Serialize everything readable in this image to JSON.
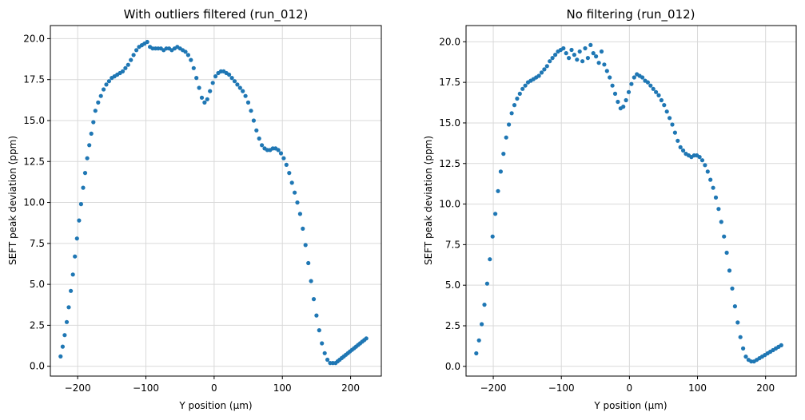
{
  "colors": {
    "marker": "#1f77b4",
    "grid": "#d9d9d9",
    "axes": "#000000",
    "background": "#ffffff"
  },
  "chart_data": [
    {
      "type": "scatter",
      "title": "With outliers filtered (run_012)",
      "xlabel": "Y position (µm)",
      "ylabel": "SEFT peak deviation (ppm)",
      "xlim": [
        -240,
        245
      ],
      "ylim": [
        -0.6,
        20.8
      ],
      "xticks": [
        -200,
        -100,
        0,
        100,
        200
      ],
      "xtick_labels": [
        "−200",
        "−100",
        "0",
        "100",
        "200"
      ],
      "yticks": [
        0.0,
        2.5,
        5.0,
        7.5,
        10.0,
        12.5,
        15.0,
        17.5,
        20.0
      ],
      "ytick_labels": [
        "0.0",
        "2.5",
        "5.0",
        "7.5",
        "10.0",
        "12.5",
        "15.0",
        "17.5",
        "20.0"
      ],
      "grid": true,
      "series": [
        {
          "x": [
            -225,
            -222,
            -219,
            -216,
            -213,
            -210,
            -207,
            -204,
            -201,
            -198,
            -195,
            -192,
            -189,
            -186,
            -183,
            -180,
            -177,
            -174,
            -170,
            -166,
            -162,
            -158,
            -154,
            -150,
            -146,
            -142,
            -138,
            -134,
            -130,
            -126,
            -122,
            -118,
            -114,
            -110,
            -106,
            -102,
            -98,
            -94,
            -90,
            -86,
            -82,
            -78,
            -74,
            -70,
            -66,
            -62,
            -58,
            -54,
            -50,
            -46,
            -42,
            -38,
            -34,
            -30,
            -26,
            -22,
            -18,
            -14,
            -10,
            -6,
            -2,
            2,
            6,
            10,
            14,
            18,
            22,
            26,
            30,
            34,
            38,
            42,
            46,
            50,
            54,
            58,
            62,
            66,
            70,
            74,
            78,
            82,
            86,
            90,
            94,
            98,
            102,
            106,
            110,
            114,
            118,
            122,
            126,
            130,
            134,
            138,
            142,
            146,
            150,
            154,
            158,
            162,
            166,
            170,
            174,
            178,
            181,
            184,
            187,
            190,
            193,
            196,
            199,
            202,
            205,
            208,
            211,
            214,
            217,
            220,
            223
          ],
          "y": [
            0.6,
            1.2,
            1.9,
            2.7,
            3.6,
            4.6,
            5.6,
            6.7,
            7.8,
            8.9,
            9.9,
            10.9,
            11.8,
            12.7,
            13.5,
            14.2,
            14.9,
            15.6,
            16.1,
            16.5,
            16.9,
            17.2,
            17.4,
            17.6,
            17.7,
            17.8,
            17.9,
            18.0,
            18.2,
            18.4,
            18.7,
            19.0,
            19.3,
            19.5,
            19.6,
            19.7,
            19.8,
            19.5,
            19.4,
            19.4,
            19.4,
            19.4,
            19.3,
            19.4,
            19.4,
            19.3,
            19.4,
            19.5,
            19.4,
            19.3,
            19.2,
            19.0,
            18.7,
            18.2,
            17.6,
            17.0,
            16.4,
            16.1,
            16.3,
            16.8,
            17.3,
            17.7,
            17.9,
            18.0,
            18.0,
            17.9,
            17.8,
            17.6,
            17.4,
            17.2,
            17.0,
            16.8,
            16.5,
            16.1,
            15.6,
            15.0,
            14.4,
            13.9,
            13.5,
            13.3,
            13.2,
            13.2,
            13.3,
            13.3,
            13.2,
            13.0,
            12.7,
            12.3,
            11.8,
            11.2,
            10.6,
            10.0,
            9.3,
            8.4,
            7.4,
            6.3,
            5.2,
            4.1,
            3.1,
            2.2,
            1.4,
            0.8,
            0.4,
            0.2,
            0.2,
            0.2,
            0.3,
            0.4,
            0.5,
            0.6,
            0.7,
            0.8,
            0.9,
            1.0,
            1.1,
            1.2,
            1.3,
            1.4,
            1.5,
            1.6,
            1.7
          ]
        }
      ]
    },
    {
      "type": "scatter",
      "title": "No filtering (run_012)",
      "xlabel": "Y position (µm)",
      "ylabel": "SEFT peak deviation (ppm)",
      "xlim": [
        -240,
        245
      ],
      "ylim": [
        -0.6,
        21.0
      ],
      "xticks": [
        -200,
        -100,
        0,
        100,
        200
      ],
      "xtick_labels": [
        "−200",
        "−100",
        "0",
        "100",
        "200"
      ],
      "yticks": [
        0.0,
        2.5,
        5.0,
        7.5,
        10.0,
        12.5,
        15.0,
        17.5,
        20.0
      ],
      "ytick_labels": [
        "0.0",
        "2.5",
        "5.0",
        "7.5",
        "10.0",
        "12.5",
        "15.0",
        "17.5",
        "20.0"
      ],
      "grid": true,
      "series": [
        {
          "x": [
            -225,
            -221,
            -217,
            -213,
            -209,
            -205,
            -201,
            -197,
            -193,
            -189,
            -185,
            -181,
            -177,
            -173,
            -169,
            -165,
            -161,
            -157,
            -153,
            -149,
            -145,
            -141,
            -137,
            -133,
            -129,
            -125,
            -121,
            -117,
            -113,
            -109,
            -105,
            -101,
            -97,
            -93,
            -89,
            -85,
            -81,
            -77,
            -73,
            -69,
            -65,
            -61,
            -57,
            -53,
            -49,
            -45,
            -41,
            -37,
            -33,
            -29,
            -25,
            -21,
            -17,
            -13,
            -9,
            -5,
            -1,
            3,
            7,
            11,
            15,
            19,
            23,
            27,
            31,
            35,
            39,
            43,
            47,
            51,
            55,
            59,
            63,
            67,
            71,
            75,
            79,
            83,
            87,
            91,
            95,
            99,
            103,
            107,
            111,
            115,
            119,
            123,
            127,
            131,
            135,
            139,
            143,
            147,
            151,
            155,
            159,
            163,
            167,
            171,
            175,
            179,
            183,
            187,
            191,
            195,
            199,
            203,
            207,
            211,
            215,
            219,
            223
          ],
          "y": [
            0.8,
            1.6,
            2.6,
            3.8,
            5.1,
            6.6,
            8.0,
            9.4,
            10.8,
            12.0,
            13.1,
            14.1,
            14.9,
            15.6,
            16.1,
            16.5,
            16.8,
            17.1,
            17.3,
            17.5,
            17.6,
            17.7,
            17.8,
            17.9,
            18.1,
            18.3,
            18.5,
            18.8,
            19.0,
            19.2,
            19.4,
            19.5,
            19.6,
            19.3,
            19.0,
            19.5,
            19.2,
            18.9,
            19.4,
            18.8,
            19.6,
            19.0,
            19.8,
            19.3,
            19.1,
            18.7,
            19.4,
            18.6,
            18.2,
            17.8,
            17.3,
            16.8,
            16.3,
            15.9,
            16.0,
            16.4,
            16.9,
            17.4,
            17.8,
            18.0,
            17.9,
            17.8,
            17.6,
            17.5,
            17.3,
            17.1,
            16.9,
            16.7,
            16.4,
            16.1,
            15.7,
            15.3,
            14.9,
            14.4,
            13.9,
            13.5,
            13.3,
            13.1,
            13.0,
            12.9,
            13.0,
            13.0,
            12.9,
            12.7,
            12.4,
            12.0,
            11.5,
            11.0,
            10.4,
            9.7,
            8.9,
            8.0,
            7.0,
            5.9,
            4.8,
            3.7,
            2.7,
            1.8,
            1.1,
            0.6,
            0.4,
            0.3,
            0.3,
            0.4,
            0.5,
            0.6,
            0.7,
            0.8,
            0.9,
            1.0,
            1.1,
            1.2,
            1.3
          ]
        }
      ]
    }
  ]
}
